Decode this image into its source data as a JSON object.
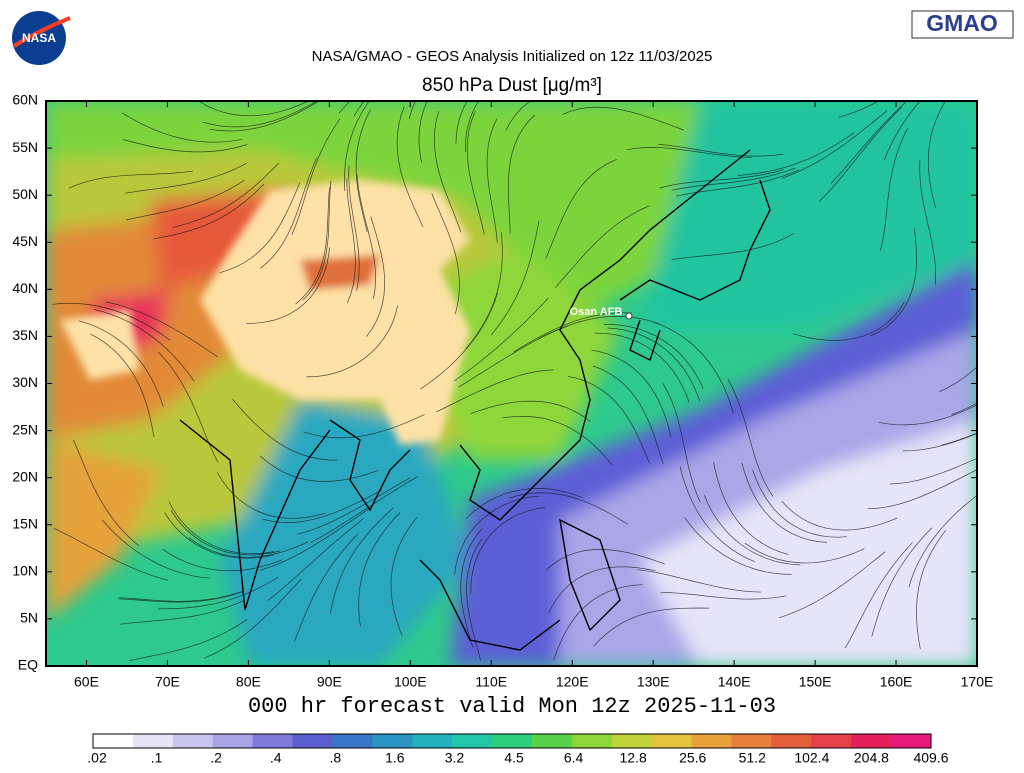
{
  "header": {
    "agency_logo": "NASA",
    "org_logo": "GMAO",
    "title": "NASA/GMAO - GEOS Analysis Initialized on 12z 11/03/2025",
    "subtitle": "850 hPa Dust [μg/m³]"
  },
  "map": {
    "latitude_labels": [
      "60N",
      "55N",
      "50N",
      "45N",
      "40N",
      "35N",
      "30N",
      "25N",
      "20N",
      "15N",
      "10N",
      "5N",
      "EQ"
    ],
    "longitude_labels": [
      "60E",
      "70E",
      "80E",
      "90E",
      "100E",
      "110E",
      "120E",
      "130E",
      "140E",
      "150E",
      "160E",
      "170E"
    ],
    "marker_label": "Osan AFB"
  },
  "footer": {
    "forecast": "000 hr forecast valid Mon 12z 2025-11-03"
  },
  "colorbar": {
    "labels": [
      ".02",
      ".1",
      ".2",
      ".4",
      ".8",
      "1.6",
      "3.2",
      "4.5",
      "6.4",
      "12.8",
      "25.6",
      "51.2",
      "102.4",
      "204.8",
      "409.6"
    ]
  }
}
